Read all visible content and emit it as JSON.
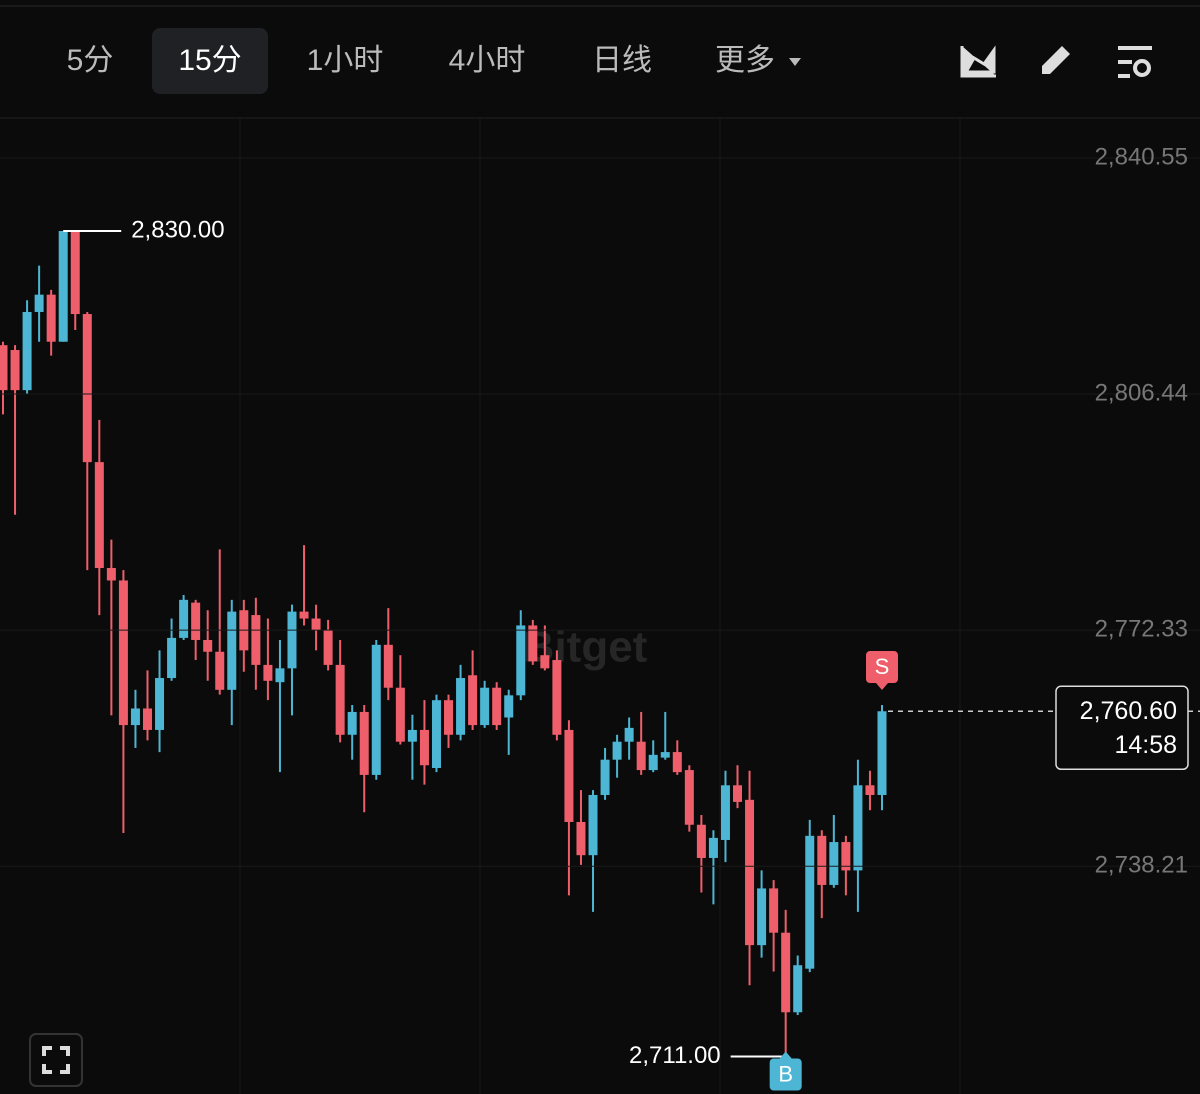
{
  "toolbar": {
    "tabs": [
      "5分",
      "15分",
      "1小时",
      "4小时",
      "日线",
      "更多"
    ],
    "selected": 1
  },
  "watermark": "Bitget",
  "chart_data": {
    "type": "candlestick",
    "open": [
      2813.5,
      2812.8,
      2807,
      2818.3,
      2820.8,
      2814,
      2830,
      2818,
      2796.6,
      2781.3,
      2779.5,
      2758.6,
      2761,
      2757.9,
      2765.4,
      2771.2,
      2776.3,
      2770.9,
      2769.2,
      2763.7,
      2775.2,
      2774.5,
      2767.3,
      2764.8,
      2766.8,
      2775,
      2774,
      2772.3,
      2767.3,
      2757.2,
      2760.5,
      2751.4,
      2770.2,
      2764,
      2756.2,
      2757.9,
      2752.4,
      2762.2,
      2757.2,
      2765.8,
      2758.6,
      2764,
      2759.7,
      2762.9,
      2773,
      2768.7,
      2768,
      2757.9,
      2744.6,
      2739.8,
      2748.5,
      2753.6,
      2756.2,
      2756.2,
      2752.1,
      2753.9,
      2754.7,
      2752.1,
      2744.2,
      2739.4,
      2742,
      2749.9,
      2747.8,
      2726.8,
      2735,
      2728.6,
      2717.1,
      2723.4,
      2742.6,
      2735.5,
      2741.7,
      2737.6,
      2749.9,
      2748.5
    ],
    "high": [
      2814,
      2813.5,
      2820,
      2825,
      2821.5,
      2830,
      2830,
      2818.3,
      2802.7,
      2785.4,
      2781,
      2763.7,
      2766.5,
      2769.4,
      2774,
      2777.4,
      2776.7,
      2775.2,
      2784,
      2776.7,
      2776.7,
      2777,
      2774,
      2770.9,
      2776,
      2784.6,
      2776,
      2773.8,
      2770.9,
      2761.5,
      2761.5,
      2770.9,
      2775.5,
      2768.7,
      2760.1,
      2762.2,
      2763,
      2763,
      2767.3,
      2769.4,
      2765,
      2764.8,
      2763.7,
      2775.2,
      2773.8,
      2773,
      2769.4,
      2759.3,
      2749.2,
      2749.2,
      2755.3,
      2757.2,
      2759.7,
      2760.5,
      2756.4,
      2760.5,
      2756.4,
      2752.8,
      2745.6,
      2743.4,
      2752,
      2752.8,
      2752,
      2737.6,
      2736.2,
      2731.9,
      2725.3,
      2744.9,
      2743.4,
      2745.6,
      2742.6,
      2753.6,
      2752,
      2761.5
    ],
    "low": [
      2803.5,
      2789,
      2806.4,
      2814,
      2812,
      2814,
      2815.7,
      2781,
      2774.5,
      2760,
      2743,
      2755.3,
      2756.4,
      2754.7,
      2765,
      2770.9,
      2768,
      2765,
      2763,
      2758.6,
      2766.3,
      2763.7,
      2762.2,
      2751.8,
      2760,
      2773,
      2769.4,
      2766.5,
      2756.1,
      2753.6,
      2746,
      2750.7,
      2762.2,
      2755.8,
      2750.7,
      2750,
      2751.8,
      2755.3,
      2756.4,
      2757.9,
      2758.2,
      2757.9,
      2754.3,
      2762.2,
      2767.3,
      2766.5,
      2756.4,
      2734,
      2738.4,
      2731.6,
      2747.8,
      2751,
      2753.6,
      2751.4,
      2751.8,
      2753.6,
      2751.4,
      2743.2,
      2734.4,
      2732.7,
      2738.8,
      2746.6,
      2721,
      2725,
      2723,
      2711,
      2716.7,
      2722.9,
      2730.7,
      2735.1,
      2734,
      2731.6,
      2746.3,
      2746.3
    ],
    "close": [
      2807,
      2807,
      2818.3,
      2820.8,
      2814,
      2830,
      2818,
      2796.6,
      2781.3,
      2779.5,
      2758.6,
      2761,
      2757.9,
      2765.4,
      2771.2,
      2776.7,
      2770.9,
      2769.2,
      2763.7,
      2775,
      2769.4,
      2767.3,
      2765,
      2766.8,
      2775,
      2774,
      2772.3,
      2767.3,
      2757.2,
      2760.5,
      2751.4,
      2770.2,
      2764,
      2756.2,
      2757.9,
      2752.8,
      2762.2,
      2757.2,
      2765.4,
      2758.6,
      2764,
      2758.6,
      2762.9,
      2773,
      2767.8,
      2766.8,
      2757.2,
      2744.6,
      2739.8,
      2748.5,
      2753.6,
      2756.2,
      2758.2,
      2752.1,
      2754.3,
      2754.7,
      2751.8,
      2744.2,
      2739.4,
      2742.3,
      2749.9,
      2747.5,
      2726.8,
      2735,
      2728.6,
      2717.1,
      2723.9,
      2742.6,
      2735.5,
      2741.7,
      2737.6,
      2749.9,
      2748.5,
      2760.6
    ],
    "up_color": "#4cb6d4",
    "down_color": "#ef5f6b",
    "ylim": [
      2705.29,
      2846.33
    ],
    "yticks": [
      {
        "value": 2840.55,
        "label": "2,840.55"
      },
      {
        "value": 2806.44,
        "label": "2,806.44"
      },
      {
        "value": 2772.33,
        "label": "2,772.33"
      },
      {
        "value": 2738.21,
        "label": "2,738.21"
      }
    ],
    "grid": true,
    "high_label": {
      "value": 2830,
      "label": "2,830.00"
    },
    "low_label": {
      "value": 2711,
      "label": "2,711.00"
    },
    "last_price": {
      "value": 2760.6,
      "label": "2,760.60"
    },
    "countdown": "14:58",
    "markers": [
      {
        "label": "S",
        "at": 73,
        "color": "#ef5f6b"
      },
      {
        "label": "B",
        "at": 65,
        "color": "#4cb6d4"
      }
    ]
  }
}
